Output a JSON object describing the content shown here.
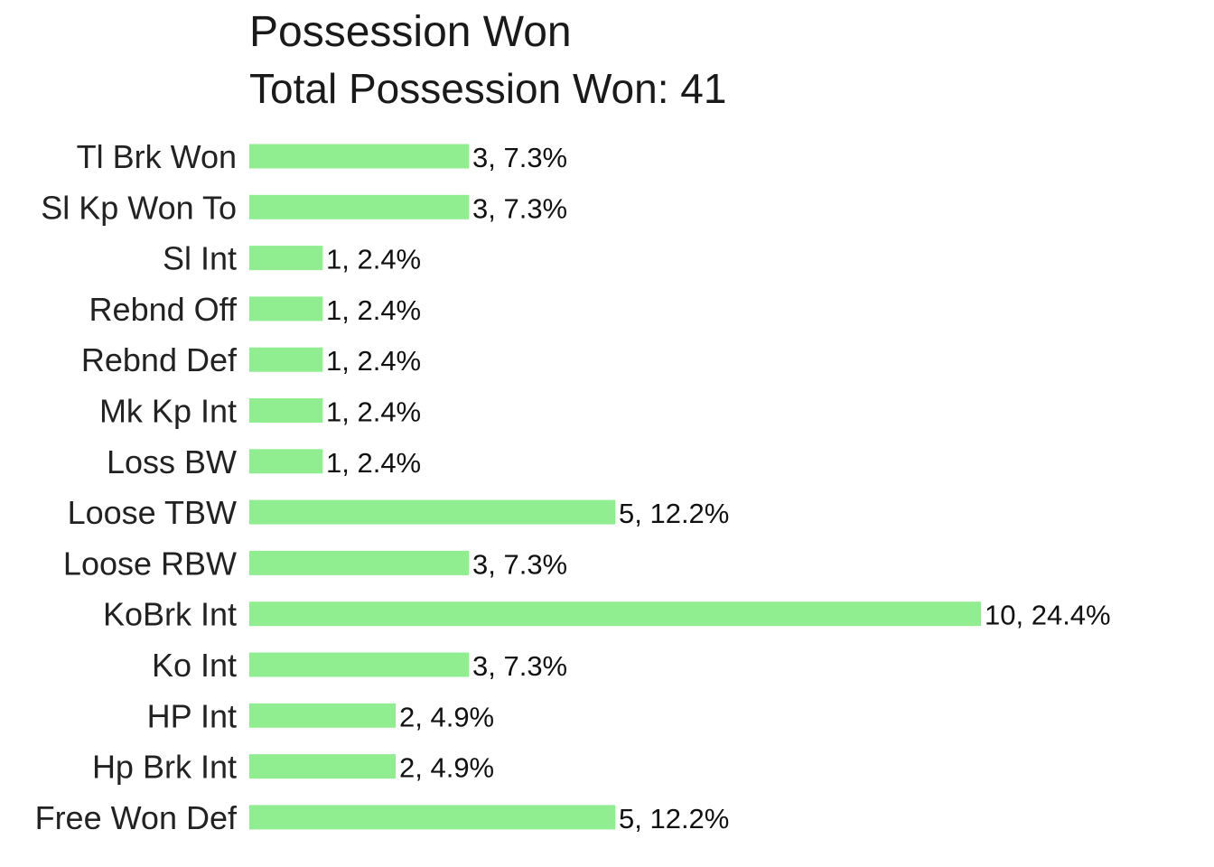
{
  "chart_data": {
    "type": "bar",
    "orientation": "horizontal",
    "title": "Possession Won",
    "subtitle": "Total Possession Won: 41",
    "categories": [
      "Tl Brk Won",
      "Sl Kp Won To",
      "Sl Int",
      "Rebnd Off",
      "Rebnd Def",
      "Mk Kp Int",
      "Loss BW",
      "Loose TBW",
      "Loose RBW",
      "KoBrk Int",
      "Ko Int",
      "HP Int",
      "Hp Brk Int",
      "Free Won Def"
    ],
    "values": [
      3,
      3,
      1,
      1,
      1,
      1,
      1,
      5,
      3,
      10,
      3,
      2,
      2,
      5
    ],
    "data_labels": [
      "3, 7.3%",
      "3, 7.3%",
      "1, 2.4%",
      "1, 2.4%",
      "1, 2.4%",
      "1, 2.4%",
      "1, 2.4%",
      "5, 12.2%",
      "3, 7.3%",
      "10, 24.4%",
      "3, 7.3%",
      "2, 4.9%",
      "2, 4.9%",
      "5, 12.2%"
    ],
    "xlim": [
      0,
      10
    ],
    "grid": false,
    "bar_color": "#90ee90"
  }
}
